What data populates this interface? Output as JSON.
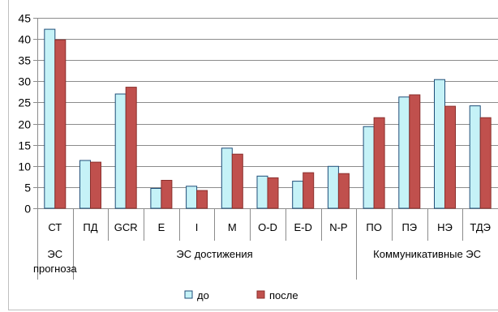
{
  "chart_data": {
    "type": "bar",
    "title": "",
    "xlabel": "",
    "ylabel": "",
    "ylim": [
      0,
      45
    ],
    "yticks": [
      0,
      5,
      10,
      15,
      20,
      25,
      30,
      35,
      40,
      45
    ],
    "grid": true,
    "legend_position": "bottom",
    "categories": [
      "СТ",
      "ПД",
      "GCR",
      "E",
      "I",
      "M",
      "O-D",
      "E-D",
      "N-P",
      "ПО",
      "ПЭ",
      "НЭ",
      "ТДЭ"
    ],
    "groups": [
      {
        "label_lines": [
          "ЭС",
          "прогноза"
        ],
        "start": 0,
        "end": 0
      },
      {
        "label_lines": [
          "ЭС достижения"
        ],
        "start": 1,
        "end": 8
      },
      {
        "label_lines": [
          "Коммуникативные ЭС"
        ],
        "start": 9,
        "end": 12
      }
    ],
    "series": [
      {
        "name": "до",
        "color": "#c5f2f7",
        "stroke": "#1f4e79",
        "values": [
          42.3,
          11.3,
          27.0,
          4.7,
          5.2,
          14.2,
          7.6,
          6.4,
          9.9,
          19.3,
          26.3,
          30.4,
          24.2
        ]
      },
      {
        "name": "после",
        "color": "#c0504d",
        "stroke": "#8b2f2c",
        "values": [
          39.8,
          10.9,
          28.6,
          6.6,
          4.2,
          12.8,
          7.2,
          8.4,
          8.2,
          21.4,
          26.8,
          24.1,
          21.4
        ]
      }
    ]
  }
}
